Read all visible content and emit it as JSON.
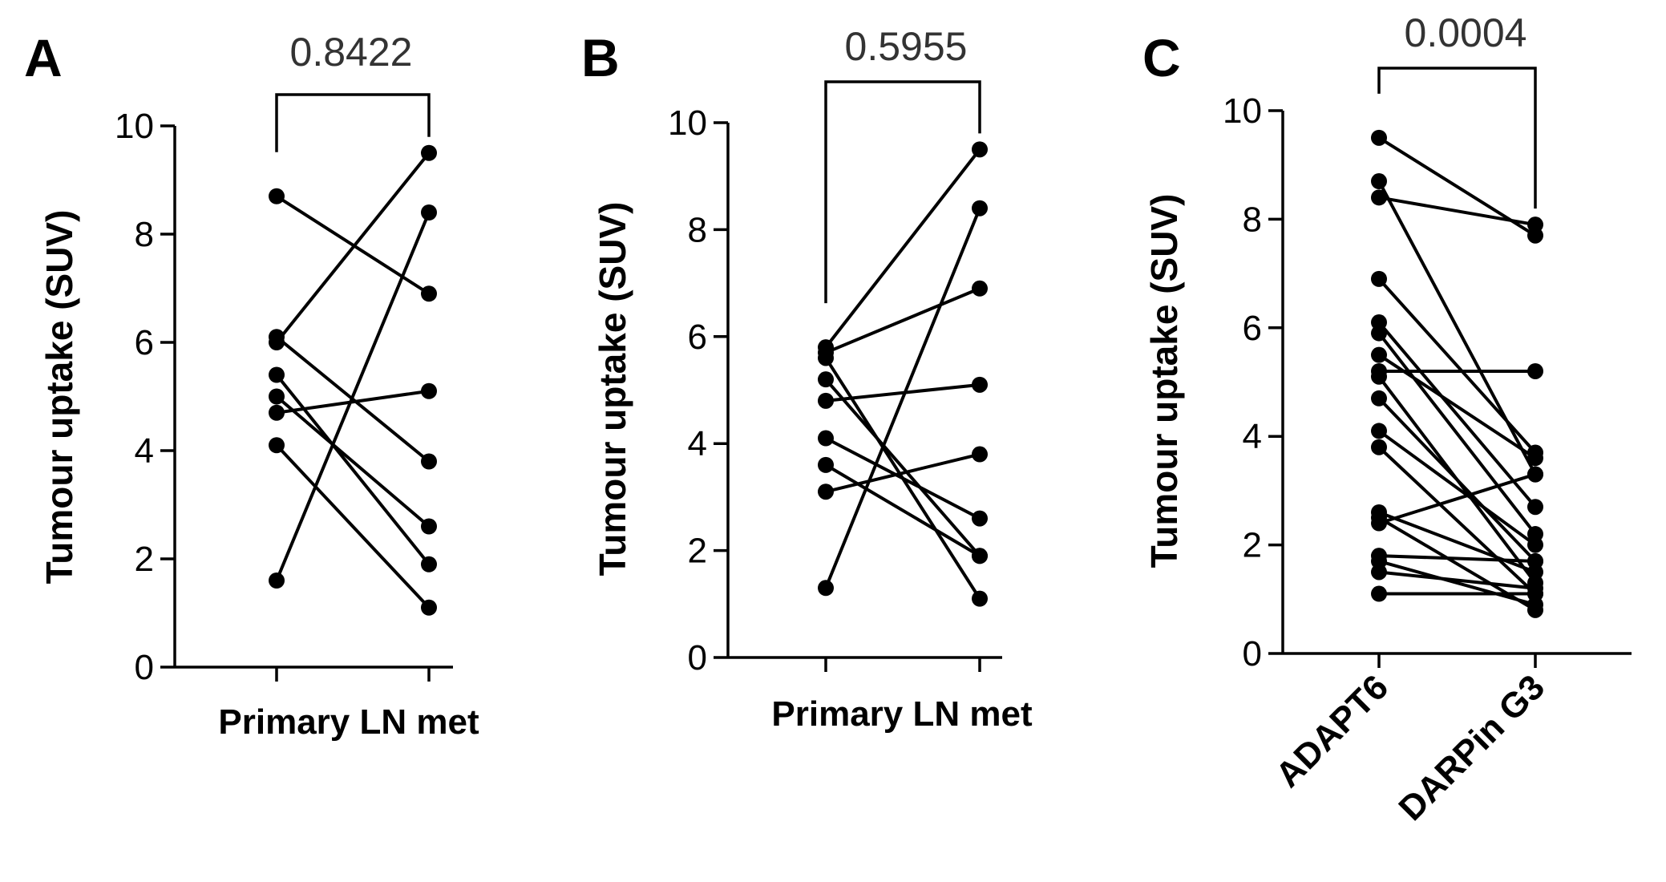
{
  "chart_data": [
    {
      "type": "line",
      "panel": "A",
      "title": "",
      "ylabel": "Tumour uptake (SUV)",
      "xlabel": "Primary LN met",
      "categories": [
        "Primary",
        "LN met"
      ],
      "ylim": [
        0,
        10
      ],
      "yticks": [
        "0",
        "2",
        "4",
        "6",
        "8",
        "10"
      ],
      "p_value": "0.8422",
      "pairs": [
        [
          8.7,
          6.9
        ],
        [
          1.6,
          8.4
        ],
        [
          6.0,
          9.5
        ],
        [
          5.4,
          1.9
        ],
        [
          5.0,
          2.6
        ],
        [
          4.7,
          5.1
        ],
        [
          4.1,
          1.1
        ],
        [
          6.1,
          3.8
        ]
      ]
    },
    {
      "type": "line",
      "panel": "B",
      "title": "",
      "ylabel": "Tumour uptake (SUV)",
      "xlabel": "Primary LN met",
      "categories": [
        "Primary",
        "LN met"
      ],
      "ylim": [
        0,
        10
      ],
      "yticks": [
        "0",
        "2",
        "4",
        "6",
        "8",
        "10"
      ],
      "p_value": "0.5955",
      "pairs": [
        [
          5.8,
          9.5
        ],
        [
          1.3,
          8.4
        ],
        [
          5.6,
          1.1
        ],
        [
          5.7,
          6.9
        ],
        [
          4.8,
          5.1
        ],
        [
          5.2,
          1.9
        ],
        [
          4.1,
          2.6
        ],
        [
          3.1,
          3.8
        ],
        [
          3.6,
          1.9
        ]
      ]
    },
    {
      "type": "line",
      "panel": "C",
      "title": "",
      "ylabel": "Tumour uptake (SUV)",
      "xlabel": "",
      "categories": [
        "ADAPT6",
        "DARPin G3"
      ],
      "ylim": [
        0,
        10
      ],
      "yticks": [
        "0",
        "2",
        "4",
        "6",
        "8",
        "10"
      ],
      "p_value": "0.0004",
      "pairs": [
        [
          9.5,
          7.7
        ],
        [
          8.7,
          3.3
        ],
        [
          8.4,
          7.9
        ],
        [
          6.9,
          3.7
        ],
        [
          6.1,
          2.7
        ],
        [
          5.9,
          2.2
        ],
        [
          5.5,
          3.6
        ],
        [
          5.2,
          5.2
        ],
        [
          5.1,
          1.3
        ],
        [
          4.7,
          1.7
        ],
        [
          4.1,
          2.0
        ],
        [
          3.8,
          1.1
        ],
        [
          2.6,
          1.5
        ],
        [
          2.4,
          3.3
        ],
        [
          2.5,
          0.8
        ],
        [
          1.8,
          1.7
        ],
        [
          1.7,
          0.9
        ],
        [
          1.5,
          1.2
        ],
        [
          1.1,
          1.1
        ]
      ]
    }
  ]
}
